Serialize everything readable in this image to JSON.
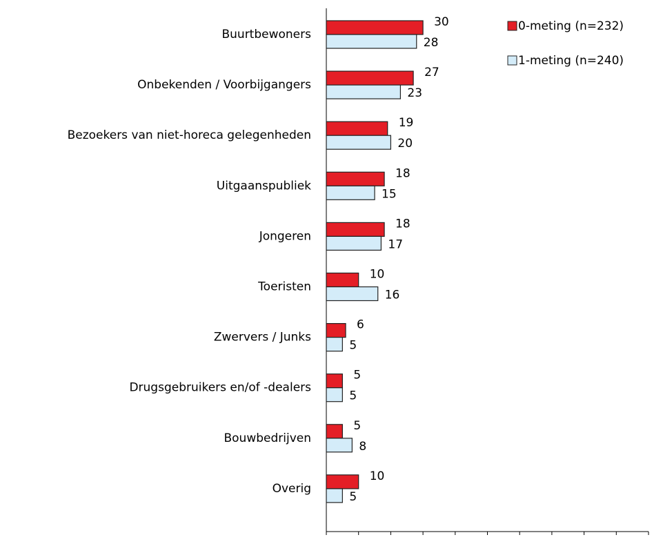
{
  "chart_data": {
    "type": "bar",
    "orientation": "horizontal",
    "categories": [
      "Buurtbewoners",
      "Onbekenden / Voorbijgangers",
      "Bezoekers van niet-horeca gelegenheden",
      "Uitgaanspubliek",
      "Jongeren",
      "Toeristen",
      "Zwervers / Junks",
      "Drugsgebruikers en/of -dealers",
      "Bouwbedrijven",
      "Overig"
    ],
    "series": [
      {
        "name": "0-meting (n=232)",
        "color": "#e41e26",
        "values": [
          30,
          27,
          19,
          18,
          18,
          10,
          6,
          5,
          5,
          10
        ]
      },
      {
        "name": "1-meting (n=240)",
        "color": "#d4ecf9",
        "values": [
          28,
          23,
          20,
          15,
          17,
          16,
          5,
          5,
          8,
          5
        ]
      }
    ],
    "xlim": [
      0,
      100
    ],
    "xticks": [
      0,
      10,
      20,
      30,
      40,
      50,
      60,
      70,
      80,
      90,
      100
    ],
    "legend": "top-right",
    "grid": false
  }
}
